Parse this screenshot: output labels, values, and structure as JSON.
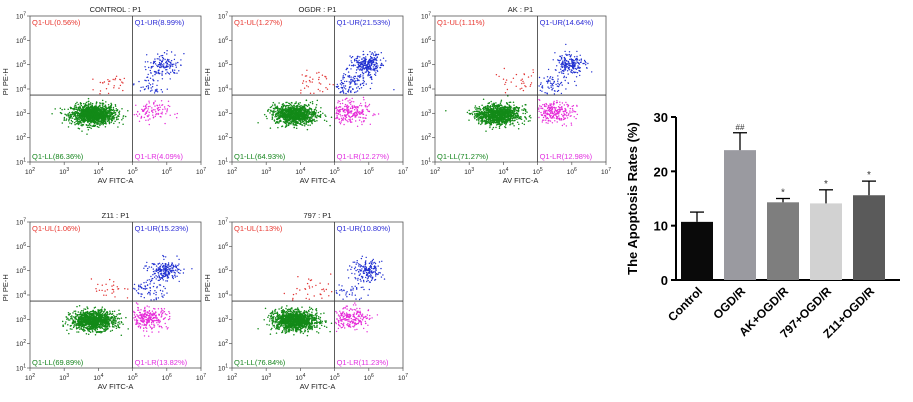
{
  "chart_data": [
    {
      "type": "scatter",
      "title": "CONTROL : P1",
      "xlabel": "AV FITC-A",
      "ylabel": "PI PE-H",
      "x_ticks": [
        "10^2",
        "10^3",
        "10^4",
        "10^5",
        "10^6",
        "10^7"
      ],
      "y_ticks": [
        "10^1",
        "10^2",
        "10^3",
        "10^4",
        "10^5",
        "10^6",
        "10^7"
      ],
      "xlim": [
        2,
        7
      ],
      "ylim": [
        1,
        7
      ],
      "quadrants": [
        {
          "name": "Q1-UL",
          "label": "Q1-UL(0.56%)",
          "percent": 0.56
        },
        {
          "name": "Q1-UR",
          "label": "Q1-UR(8.99%)",
          "percent": 8.99
        },
        {
          "name": "Q1-LL",
          "label": "Q1-LL(86.36%)",
          "percent": 86.36
        },
        {
          "name": "Q1-LR",
          "label": "Q1-LR(4.09%)",
          "percent": 4.09
        }
      ]
    },
    {
      "type": "scatter",
      "title": "OGDR : P1",
      "xlabel": "AV FITC-A",
      "ylabel": "PI PE-H",
      "x_ticks": [
        "10^2",
        "10^3",
        "10^4",
        "10^5",
        "10^6",
        "10^7"
      ],
      "y_ticks": [
        "10^1",
        "10^2",
        "10^3",
        "10^4",
        "10^5",
        "10^6",
        "10^7"
      ],
      "xlim": [
        2,
        7
      ],
      "ylim": [
        1,
        7
      ],
      "quadrants": [
        {
          "name": "Q1-UL",
          "label": "Q1-UL(1.27%)",
          "percent": 1.27
        },
        {
          "name": "Q1-UR",
          "label": "Q1-UR(21.53%)",
          "percent": 21.53
        },
        {
          "name": "Q1-LL",
          "label": "Q1-LL(64.93%)",
          "percent": 64.93
        },
        {
          "name": "Q1-LR",
          "label": "Q1-LR(12.27%)",
          "percent": 12.27
        }
      ]
    },
    {
      "type": "scatter",
      "title": "AK : P1",
      "xlabel": "AV FITC-A",
      "ylabel": "PI PE-H",
      "x_ticks": [
        "10^2",
        "10^3",
        "10^4",
        "10^5",
        "10^6",
        "10^7"
      ],
      "y_ticks": [
        "10^1",
        "10^2",
        "10^3",
        "10^4",
        "10^5",
        "10^6",
        "10^7"
      ],
      "xlim": [
        2,
        7
      ],
      "ylim": [
        1,
        7
      ],
      "quadrants": [
        {
          "name": "Q1-UL",
          "label": "Q1-UL(1.11%)",
          "percent": 1.11
        },
        {
          "name": "Q1-UR",
          "label": "Q1-UR(14.64%)",
          "percent": 14.64
        },
        {
          "name": "Q1-LL",
          "label": "Q1-LL(71.27%)",
          "percent": 71.27
        },
        {
          "name": "Q1-LR",
          "label": "Q1-LR(12.98%)",
          "percent": 12.98
        }
      ]
    },
    {
      "type": "scatter",
      "title": "Z11 : P1",
      "xlabel": "AV FITC-A",
      "ylabel": "PI PE-H",
      "x_ticks": [
        "10^2",
        "10^3",
        "10^4",
        "10^5",
        "10^6",
        "10^7"
      ],
      "y_ticks": [
        "10^1",
        "10^2",
        "10^3",
        "10^4",
        "10^5",
        "10^6",
        "10^7"
      ],
      "xlim": [
        2,
        7
      ],
      "ylim": [
        1,
        7
      ],
      "quadrants": [
        {
          "name": "Q1-UL",
          "label": "Q1-UL(1.06%)",
          "percent": 1.06
        },
        {
          "name": "Q1-UR",
          "label": "Q1-UR(15.23%)",
          "percent": 15.23
        },
        {
          "name": "Q1-LL",
          "label": "Q1-LL(69.89%)",
          "percent": 69.89
        },
        {
          "name": "Q1-LR",
          "label": "Q1-LR(13.82%)",
          "percent": 13.82
        }
      ]
    },
    {
      "type": "scatter",
      "title": "797 : P1",
      "xlabel": "AV FITC-A",
      "ylabel": "PI PE-H",
      "x_ticks": [
        "10^2",
        "10^3",
        "10^4",
        "10^5",
        "10^6",
        "10^7"
      ],
      "y_ticks": [
        "10^1",
        "10^2",
        "10^3",
        "10^4",
        "10^5",
        "10^6",
        "10^7"
      ],
      "xlim": [
        2,
        7
      ],
      "ylim": [
        1,
        7
      ],
      "quadrants": [
        {
          "name": "Q1-UL",
          "label": "Q1-UL(1.13%)",
          "percent": 1.13
        },
        {
          "name": "Q1-UR",
          "label": "Q1-UR(10.80%)",
          "percent": 10.8
        },
        {
          "name": "Q1-LL",
          "label": "Q1-LL(76.84%)",
          "percent": 76.84
        },
        {
          "name": "Q1-LR",
          "label": "Q1-LR(11.23%)",
          "percent": 11.23
        }
      ]
    },
    {
      "type": "bar",
      "title": "",
      "xlabel": "",
      "ylabel": "The Apoptosis Rates (%)",
      "ylim": [
        0,
        30
      ],
      "yticks": [
        0,
        10,
        20,
        30
      ],
      "categories": [
        "Control",
        "OGD/R",
        "AK+OGD/R",
        "797+OGD/R",
        "Z11+OGD/R"
      ],
      "values": [
        10.7,
        23.9,
        14.3,
        14.1,
        15.6
      ],
      "errors": [
        1.8,
        3.2,
        0.7,
        2.5,
        2.6
      ],
      "significance": [
        "",
        "##",
        "*",
        "*",
        "*"
      ]
    }
  ],
  "colors": {
    "ul": "#e8352e",
    "ur": "#2b2bd6",
    "ll": "#16851e",
    "lr": "#e22fe0",
    "scatter_ur": "#1f2fd0",
    "scatter_ll": "#138a18",
    "scatter_lr": "#e62bd8",
    "scatter_ul": "#e03030",
    "bars": [
      "#0a0a0a",
      "#9a9aa0",
      "#7e7e7e",
      "#d2d2d2",
      "#5a5a5a"
    ]
  }
}
